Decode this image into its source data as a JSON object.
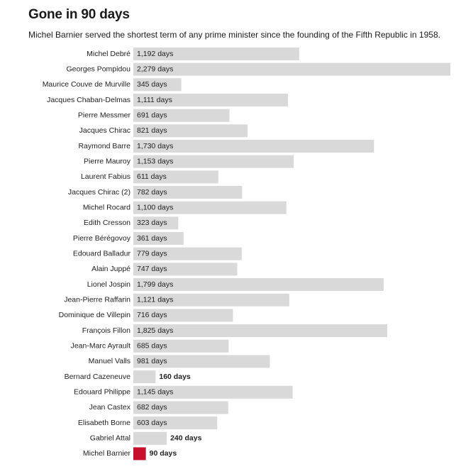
{
  "header": {
    "title": "Gone in 90 days",
    "subtitle": "Michel Barnier served the shortest term of any prime minister since the founding of the Fifth Republic in 1958."
  },
  "colors": {
    "bar": "#d9d9d9",
    "highlight": "#c8102e",
    "text": "#222222"
  },
  "chart_data": {
    "type": "bar",
    "orientation": "horizontal",
    "title": "Gone in 90 days",
    "subtitle": "Michel Barnier served the shortest term of any prime minister since the founding of the Fifth Republic in 1958.",
    "unit": "days",
    "categories": [
      "Michel Debré",
      "Georges Pompidou",
      "Maurice Couve de Murville",
      "Jacques Chaban-Delmas",
      "Pierre Messmer",
      "Jacques Chirac",
      "Raymond Barre",
      "Pierre Mauroy",
      "Laurent Fabius",
      "Jacques Chirac (2)",
      "Michel Rocard",
      "Edith Cresson",
      "Pierre Bérégovoy",
      "Edouard Balladur",
      "Alain Juppé",
      "Lionel Jospin",
      "Jean-Pierre Raffarin",
      "Dominique de Villepin",
      "François Fillon",
      "Jean-Marc Ayrault",
      "Manuel Valls",
      "Bernard Cazeneuve",
      "Edouard Philippe",
      "Jean Castex",
      "Elisabeth Borne",
      "Gabriel Attal",
      "Michel Barnier"
    ],
    "values": [
      1192,
      2279,
      345,
      1111,
      691,
      821,
      1730,
      1153,
      611,
      782,
      1100,
      323,
      361,
      779,
      747,
      1799,
      1121,
      716,
      1825,
      685,
      981,
      160,
      1145,
      682,
      603,
      240,
      90
    ],
    "value_labels": [
      "1,192 days",
      "2,279 days",
      "345 days",
      "1,111 days",
      "691 days",
      "821 days",
      "1,730 days",
      "1,153 days",
      "611 days",
      "782 days",
      "1,100 days",
      "323 days",
      "361 days",
      "779 days",
      "747 days",
      "1,799 days",
      "1,121 days",
      "716 days",
      "1,825 days",
      "685 days",
      "981 days",
      "160 days",
      "1,145 days",
      "682 days",
      "603 days",
      "240 days",
      "90 days"
    ],
    "highlight": "Michel Barnier",
    "grid": false,
    "legend": "none"
  }
}
